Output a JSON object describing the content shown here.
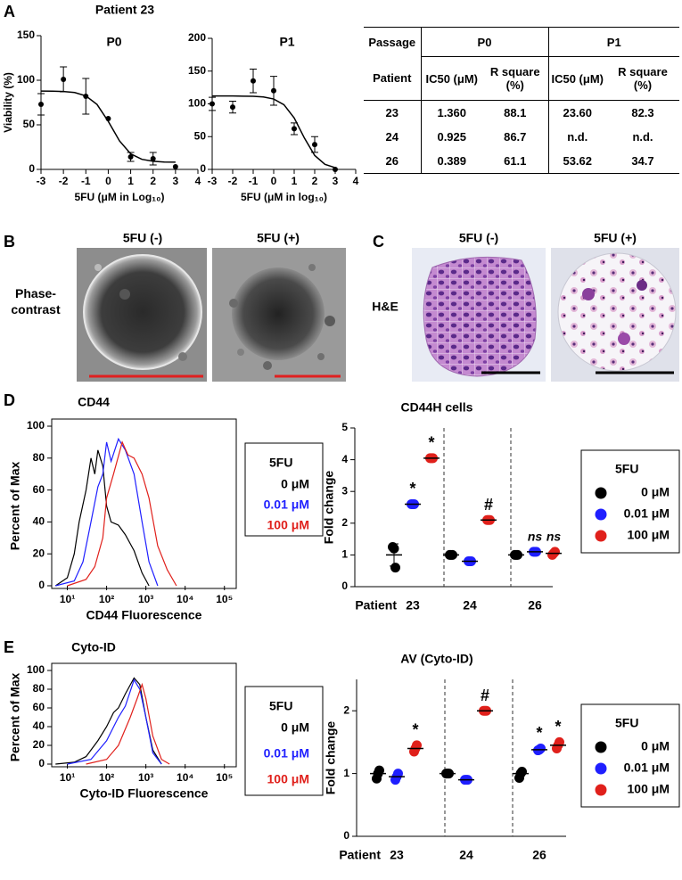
{
  "panel_labels": [
    "A",
    "B",
    "C",
    "D",
    "E"
  ],
  "panel_a_title": "Patient 23",
  "panel_b": {
    "row_label": "Phase-contrast",
    "columns": [
      "5FU (-)",
      "5FU (+)"
    ]
  },
  "panel_c": {
    "row_label": "H&E",
    "columns": [
      "5FU (-)",
      "5FU (+)"
    ]
  },
  "table": {
    "header": [
      "Passage",
      "P0",
      "P1"
    ],
    "subheader": [
      "Patient",
      "IC50 (μM)",
      "R square (%)",
      "IC50 (μM)",
      "R square (%)"
    ],
    "rows": [
      [
        "23",
        "1.360",
        "88.1",
        "23.60",
        "82.3"
      ],
      [
        "24",
        "0.925",
        "86.7",
        "n.d.",
        "n.d."
      ],
      [
        "26",
        "0.389",
        "61.1",
        "53.62",
        "34.7"
      ]
    ]
  },
  "chart_data": [
    {
      "type": "dose_response",
      "title": "P0",
      "x_label": "5FU (μM in Log₁₀)",
      "y_label": "Viability (%)",
      "color": "#000000",
      "xlim": [
        -3,
        4
      ],
      "xticks": [
        -3,
        -2,
        -1,
        0,
        1,
        2,
        3,
        4
      ],
      "ylim": [
        0,
        150
      ],
      "yticks": [
        0,
        50,
        100,
        150
      ],
      "x": [
        -3,
        -2,
        -1,
        0,
        1,
        2,
        3
      ],
      "values": [
        73,
        101,
        82,
        57,
        14,
        12,
        3
      ],
      "errors": [
        12,
        14,
        20,
        null,
        5,
        7,
        null
      ],
      "curve": {
        "x": [
          -3,
          -2.5,
          -2,
          -1.5,
          -1,
          -0.5,
          0,
          0.5,
          1,
          1.5,
          2,
          2.5,
          3
        ],
        "values": [
          87.9,
          87.8,
          87.4,
          86.2,
          82.5,
          72.8,
          53.9,
          32.0,
          17.5,
          11.3,
          9.1,
          8.3,
          8.1
        ]
      }
    },
    {
      "type": "dose_response",
      "title": "P1",
      "x_label": "5FU (μM in log₁₀)",
      "color": "#000000",
      "xlim": [
        -3,
        4
      ],
      "xticks": [
        -3,
        -2,
        -1,
        0,
        1,
        2,
        3,
        4
      ],
      "ylim": [
        0,
        200
      ],
      "yticks": [
        0,
        50,
        100,
        150,
        200
      ],
      "x": [
        -3,
        -2,
        -1,
        0,
        1,
        2,
        3
      ],
      "values": [
        100,
        95,
        135,
        120,
        62,
        38,
        0
      ],
      "errors": [
        10,
        9,
        18,
        22,
        9,
        12,
        null
      ],
      "curve": {
        "x": [
          -3,
          -2.5,
          -2,
          -1.5,
          -1,
          -0.5,
          0,
          0.5,
          1,
          1.5,
          2,
          2.5,
          3
        ],
        "values": [
          112.0,
          112.0,
          112.0,
          111.8,
          111.5,
          110.5,
          107.4,
          98.7,
          78.5,
          47.7,
          21.3,
          7.7,
          2.6
        ]
      }
    },
    {
      "type": "histogram_line",
      "title": "CD44",
      "x_label": "CD44 Fluorescence",
      "y_label": "Percent of Max",
      "log_x": true,
      "xlim": [
        4,
        200000
      ],
      "xticks": [
        {
          "value": 10,
          "label": "10¹"
        },
        {
          "value": 100,
          "label": "10²"
        },
        {
          "value": 1000,
          "label": "10³"
        },
        {
          "value": 10000,
          "label": "10⁴"
        },
        {
          "value": 100000,
          "label": "10⁵"
        }
      ],
      "ylim": [
        0,
        100
      ],
      "yticks": [
        0,
        20,
        40,
        60,
        80,
        100
      ],
      "legend_title": "5FU",
      "series": [
        {
          "name": "0 μM",
          "color": "#000000",
          "x": [
            5,
            10,
            15,
            20,
            30,
            40,
            50,
            60,
            80,
            100,
            130,
            200,
            300,
            500,
            800,
            1200
          ],
          "values": [
            0,
            5,
            20,
            40,
            60,
            80,
            70,
            85,
            75,
            50,
            40,
            38,
            32,
            22,
            8,
            0
          ]
        },
        {
          "name": "0.01 μM",
          "color": "#1f1fff",
          "x": [
            5,
            15,
            25,
            40,
            60,
            80,
            100,
            130,
            200,
            300,
            500,
            800,
            1200,
            2000
          ],
          "values": [
            0,
            3,
            15,
            40,
            62,
            70,
            90,
            78,
            92,
            85,
            70,
            40,
            15,
            0
          ]
        },
        {
          "name": "100 μM",
          "color": "#e0201b",
          "x": [
            10,
            30,
            50,
            80,
            100,
            150,
            250,
            350,
            500,
            800,
            1200,
            2000,
            3500,
            6000
          ],
          "values": [
            0,
            4,
            12,
            30,
            55,
            70,
            90,
            82,
            80,
            70,
            55,
            25,
            10,
            0
          ]
        }
      ]
    },
    {
      "type": "dot",
      "title": "CD44H cells",
      "x_label": "Patient",
      "y_label": "Fold change",
      "categories": [
        "23",
        "24",
        "26"
      ],
      "ylim": [
        0,
        5
      ],
      "yticks": [
        0,
        1,
        2,
        3,
        4,
        5
      ],
      "legend_title": "5FU",
      "series": [
        {
          "name": "0 μM",
          "color": "#000000",
          "values": [
            1.0,
            1.0,
            1.0
          ],
          "errors": [
            0.35,
            null,
            null
          ],
          "points": [
            [
              1.25,
              1.2,
              0.6
            ],
            [
              1.0,
              1.0,
              1.0
            ],
            [
              1.0,
              1.0,
              1.0
            ]
          ],
          "labels": [
            null,
            null,
            null
          ]
        },
        {
          "name": "0.01 μM",
          "color": "#1f1fff",
          "values": [
            2.6,
            0.8,
            1.1
          ],
          "points": [
            [
              2.6,
              2.6,
              2.6
            ],
            [
              0.8,
              0.8,
              0.8
            ],
            [
              1.1,
              1.1,
              1.1
            ]
          ],
          "labels": [
            "*",
            null,
            "ns"
          ]
        },
        {
          "name": "100 μM",
          "color": "#e0201b",
          "values": [
            4.05,
            2.1,
            1.05
          ],
          "points": [
            [
              4.05,
              4.05,
              4.05
            ],
            [
              2.1,
              2.1,
              2.1
            ],
            [
              1.0,
              1.05,
              1.1
            ]
          ],
          "labels": [
            "*",
            "#",
            "ns"
          ]
        }
      ]
    },
    {
      "type": "histogram_line",
      "title": "Cyto-ID",
      "x_label": "Cyto-ID Fluorescence",
      "y_label": "Percent of Max",
      "log_x": true,
      "xlim": [
        4,
        200000
      ],
      "xticks": [
        {
          "value": 10,
          "label": "10¹"
        },
        {
          "value": 100,
          "label": "10²"
        },
        {
          "value": 1000,
          "label": "10³"
        },
        {
          "value": 10000,
          "label": "10⁴"
        },
        {
          "value": 100000,
          "label": "10⁵"
        }
      ],
      "ylim": [
        0,
        100
      ],
      "yticks": [
        0,
        20,
        40,
        60,
        80,
        100
      ],
      "legend_title": "5FU",
      "series": [
        {
          "name": "0 μM",
          "color": "#000000",
          "x": [
            5,
            15,
            30,
            60,
            100,
            150,
            200,
            300,
            500,
            700,
            1000,
            1500,
            2500
          ],
          "values": [
            0,
            2,
            8,
            25,
            40,
            55,
            60,
            75,
            92,
            85,
            50,
            15,
            0
          ]
        },
        {
          "name": "0.01 μM",
          "color": "#1f1fff",
          "x": [
            10,
            40,
            100,
            200,
            300,
            500,
            700,
            1000,
            1500,
            2500
          ],
          "values": [
            0,
            5,
            25,
            50,
            62,
            90,
            80,
            50,
            12,
            0
          ]
        },
        {
          "name": "100 μM",
          "color": "#e0201b",
          "x": [
            30,
            100,
            200,
            400,
            600,
            800,
            1000,
            1500,
            2500,
            4000
          ],
          "values": [
            0,
            5,
            20,
            50,
            70,
            85,
            70,
            30,
            5,
            0
          ]
        }
      ]
    },
    {
      "type": "dot",
      "title": "AV (Cyto-ID)",
      "x_label": "Patient",
      "y_label": "Fold change",
      "categories": [
        "23",
        "24",
        "26"
      ],
      "ylim": [
        0,
        2.5
      ],
      "yticks": [
        0,
        1,
        2
      ],
      "legend_title": "5FU",
      "series": [
        {
          "name": "0 μM",
          "color": "#000000",
          "values": [
            1.0,
            1.0,
            1.0
          ],
          "points": [
            [
              0.92,
              1.0,
              1.05
            ],
            [
              1.0,
              1.0,
              1.0
            ],
            [
              0.93,
              1.0,
              1.03
            ]
          ],
          "labels": [
            null,
            null,
            null
          ]
        },
        {
          "name": "0.01 μM",
          "color": "#1f1fff",
          "values": [
            0.95,
            0.9,
            1.38
          ],
          "points": [
            [
              0.9,
              0.95,
              1.0
            ],
            [
              0.9,
              0.9,
              0.9
            ],
            [
              1.37,
              1.38,
              1.4
            ]
          ],
          "labels": [
            null,
            null,
            "*"
          ]
        },
        {
          "name": "100 μM",
          "color": "#e0201b",
          "values": [
            1.4,
            2.0,
            1.45
          ],
          "points": [
            [
              1.35,
              1.4,
              1.45
            ],
            [
              2.0,
              2.0,
              2.0
            ],
            [
              1.4,
              1.45,
              1.5
            ]
          ],
          "labels": [
            "*",
            "#",
            "*"
          ]
        }
      ]
    }
  ]
}
